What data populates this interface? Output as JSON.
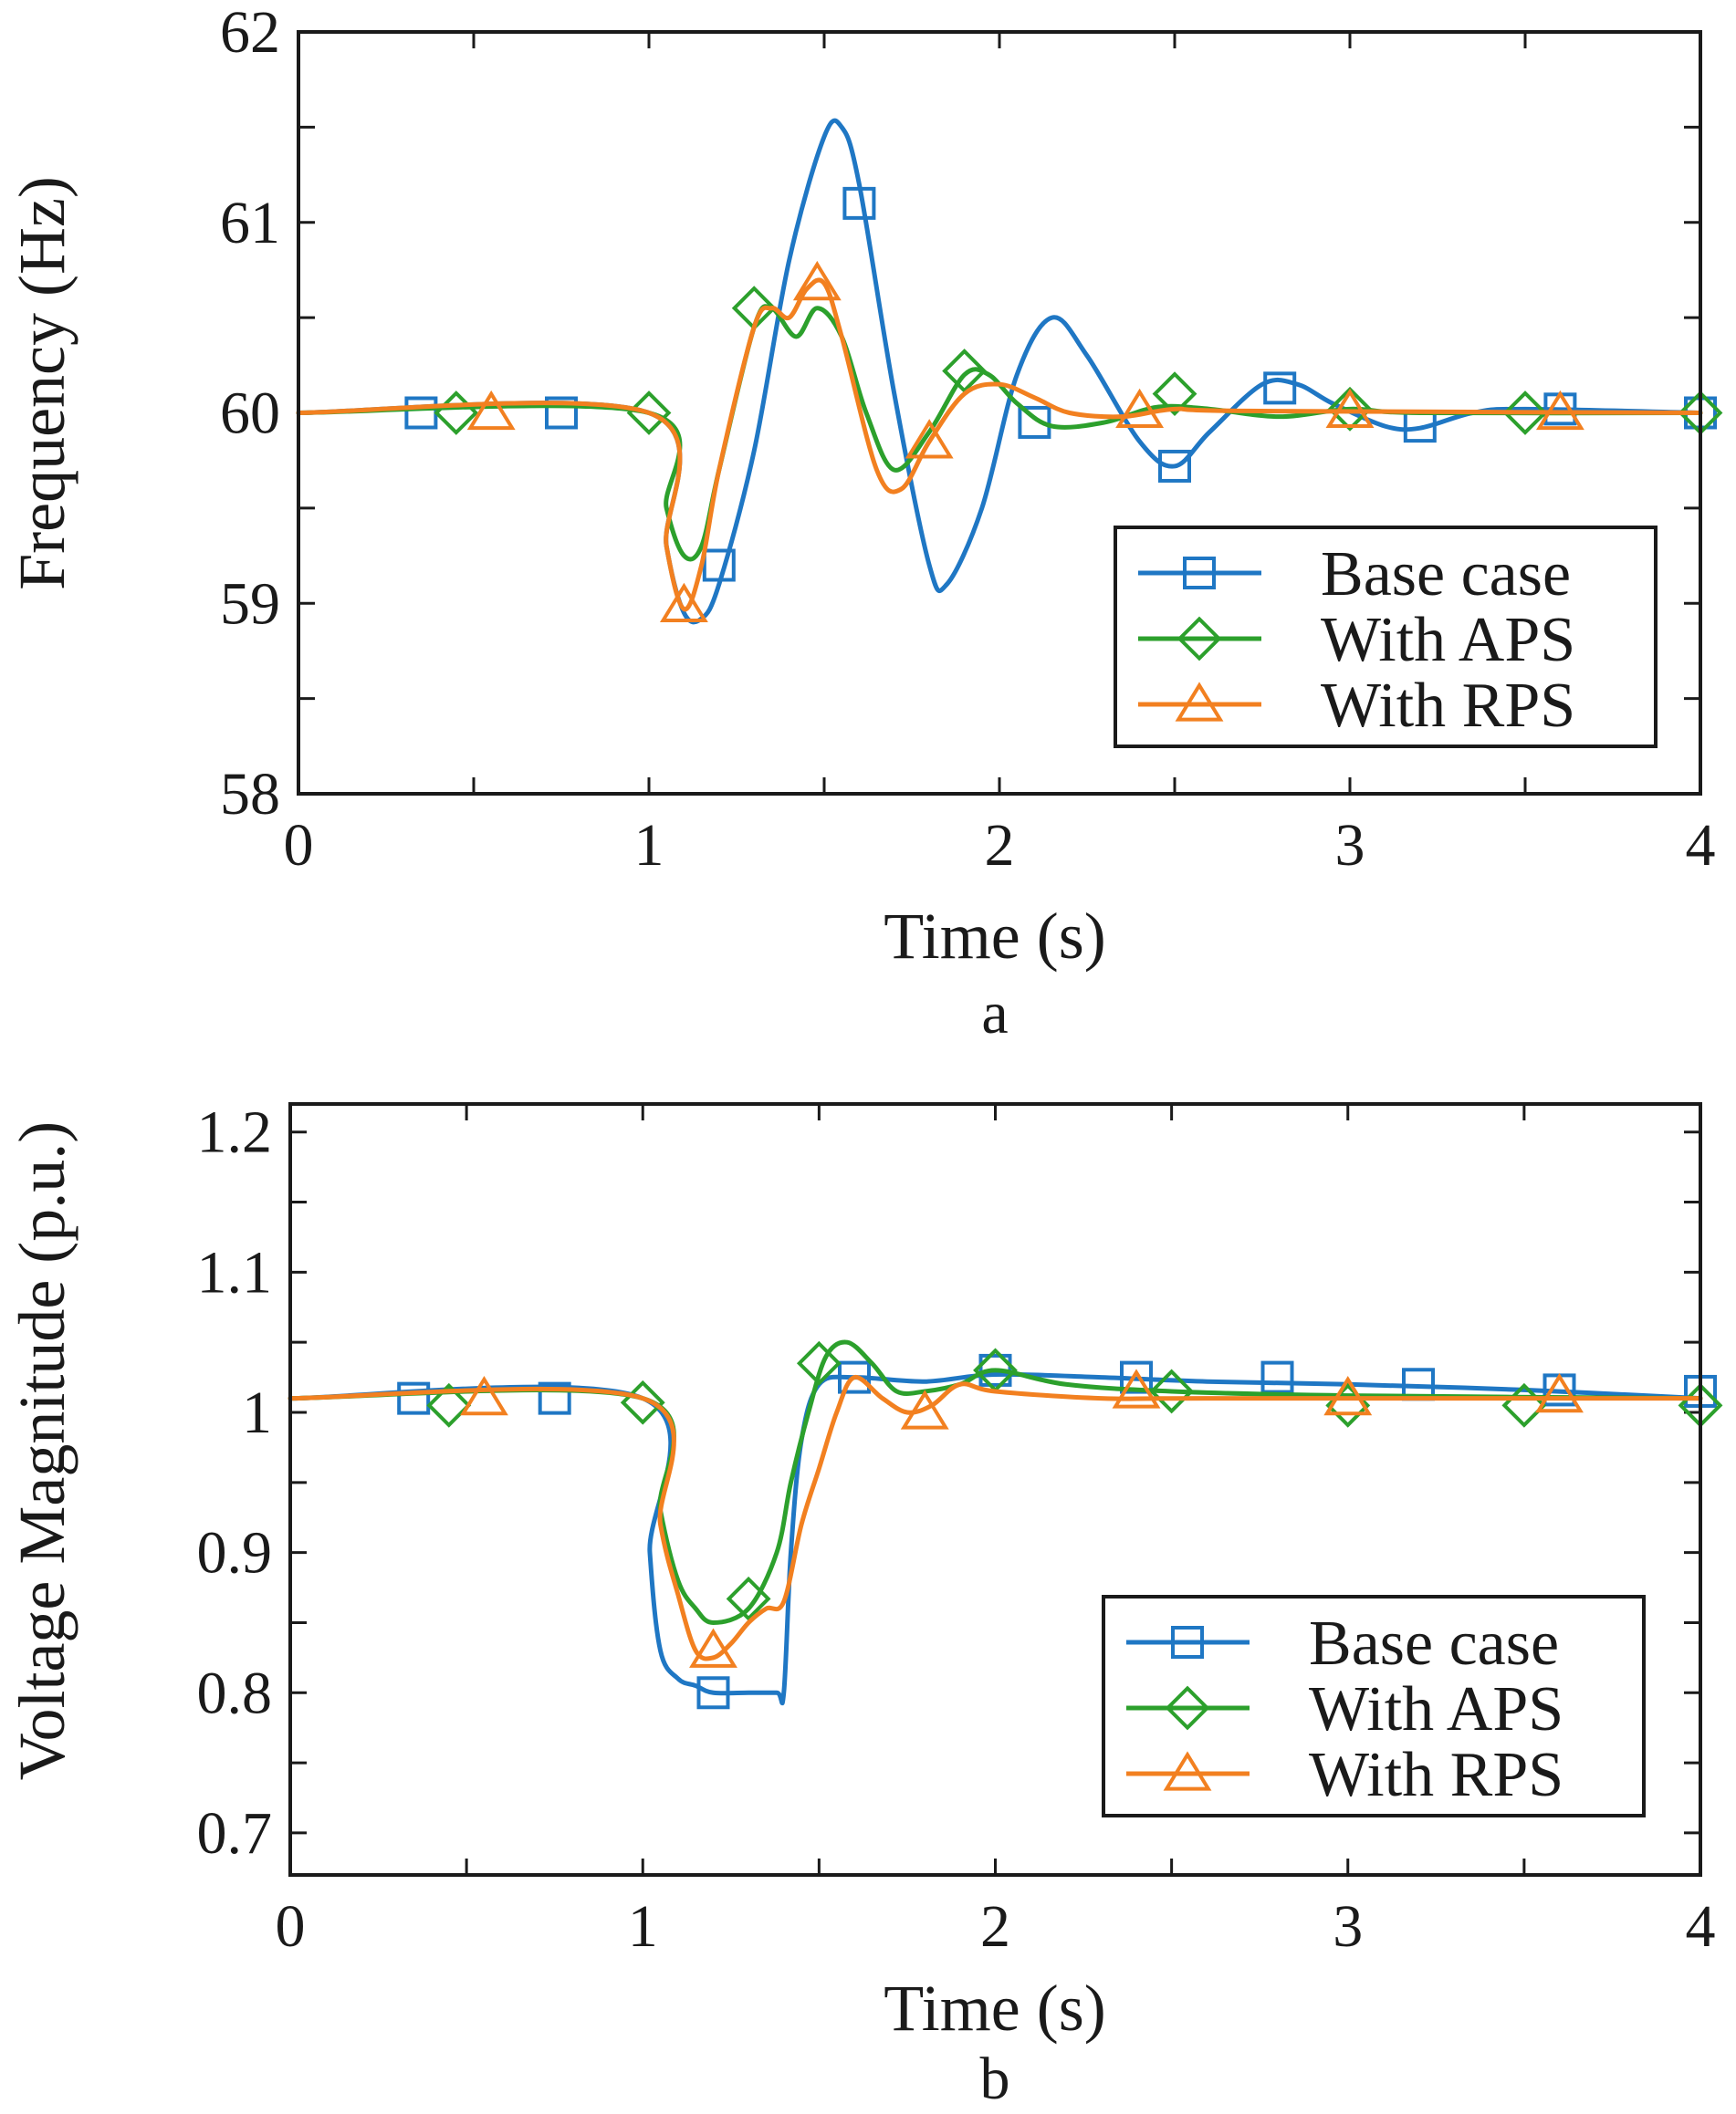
{
  "colors": {
    "base": "#1f77c4",
    "aps": "#2ca02c",
    "rps": "#f28020"
  },
  "chart_data": [
    {
      "type": "line",
      "panel_label": "a",
      "xlabel": "Time (s)",
      "ylabel": "Frequency (Hz)",
      "xlim": [
        0,
        4
      ],
      "ylim": [
        58,
        62
      ],
      "xticks": [
        0,
        1,
        2,
        3,
        4
      ],
      "xtick_labels": [
        "0",
        "1",
        "2",
        "3",
        "4"
      ],
      "yticks": [
        58,
        59,
        60,
        61,
        62
      ],
      "ytick_labels": [
        "58",
        "59",
        "60",
        "61",
        "62"
      ],
      "grid": false,
      "legend_position": "bottom-right",
      "series": [
        {
          "name": "Base case",
          "marker": "square",
          "color_key": "base",
          "x": [
            0,
            1.0,
            1.05,
            1.1,
            1.15,
            1.2,
            1.3,
            1.4,
            1.5,
            1.55,
            1.6,
            1.7,
            1.8,
            1.85,
            1.95,
            2.05,
            2.15,
            2.25,
            2.4,
            2.5,
            2.6,
            2.75,
            2.85,
            2.95,
            3.1,
            3.2,
            3.35,
            3.5,
            4.0
          ],
          "y": [
            60.0,
            60.0,
            59.3,
            58.95,
            58.92,
            59.1,
            59.8,
            60.8,
            61.45,
            61.5,
            61.2,
            60.1,
            59.2,
            59.1,
            59.5,
            60.2,
            60.5,
            60.3,
            59.85,
            59.72,
            59.9,
            60.15,
            60.15,
            60.05,
            59.93,
            59.92,
            60.0,
            60.02,
            60.0
          ],
          "marker_x": [
            0.35,
            0.75,
            1.2,
            1.6,
            2.1,
            2.5,
            2.8,
            3.2,
            3.6,
            4.0
          ],
          "marker_y": [
            60.0,
            60.0,
            59.2,
            61.1,
            59.95,
            59.72,
            60.13,
            59.93,
            60.02,
            60.0
          ]
        },
        {
          "name": "With APS",
          "marker": "diamond",
          "color_key": "aps",
          "x": [
            0,
            1.0,
            1.05,
            1.1,
            1.15,
            1.2,
            1.3,
            1.35,
            1.42,
            1.48,
            1.55,
            1.62,
            1.7,
            1.8,
            1.9,
            1.97,
            2.05,
            2.15,
            2.3,
            2.45,
            2.6,
            2.8,
            3.0,
            3.2,
            4.0
          ],
          "y": [
            60.0,
            60.0,
            59.5,
            59.25,
            59.3,
            59.7,
            60.45,
            60.55,
            60.4,
            60.55,
            60.4,
            60.0,
            59.7,
            59.9,
            60.2,
            60.2,
            60.05,
            59.93,
            59.95,
            60.03,
            60.02,
            59.98,
            60.02,
            60.0,
            60.0
          ],
          "marker_x": [
            0.45,
            1.0,
            1.3,
            1.9,
            2.5,
            3.0,
            3.5,
            4.0
          ],
          "marker_y": [
            60.0,
            60.0,
            60.55,
            60.22,
            60.1,
            60.02,
            60.0,
            60.0
          ]
        },
        {
          "name": "With RPS",
          "marker": "triangle",
          "color_key": "rps",
          "x": [
            0,
            1.0,
            1.05,
            1.1,
            1.15,
            1.2,
            1.3,
            1.35,
            1.4,
            1.45,
            1.5,
            1.55,
            1.65,
            1.72,
            1.8,
            1.9,
            2.0,
            2.1,
            2.2,
            2.35,
            2.5,
            2.7,
            4.0
          ],
          "y": [
            60.0,
            60.0,
            59.3,
            58.97,
            59.2,
            59.7,
            60.45,
            60.55,
            60.5,
            60.65,
            60.68,
            60.4,
            59.7,
            59.6,
            59.85,
            60.1,
            60.15,
            60.08,
            60.0,
            59.98,
            60.02,
            60.01,
            60.0
          ],
          "marker_x": [
            0.55,
            1.1,
            1.48,
            1.8,
            2.4,
            3.0,
            3.6
          ],
          "marker_y": [
            60.0,
            58.99,
            60.68,
            59.85,
            60.01,
            60.01,
            60.0
          ]
        }
      ]
    },
    {
      "type": "line",
      "panel_label": "b",
      "xlabel": "Time (s)",
      "ylabel": "Voltage Magnitude (p.u.)",
      "xlim": [
        0,
        4
      ],
      "ylim": [
        0.67,
        1.22
      ],
      "xticks": [
        0,
        1,
        2,
        3,
        4
      ],
      "xtick_labels": [
        "0",
        "1",
        "2",
        "3",
        "4"
      ],
      "yticks": [
        0.7,
        0.8,
        0.9,
        1.0,
        1.1,
        1.2
      ],
      "ytick_labels": [
        "0.7",
        "0.8",
        "0.9",
        "1",
        "1.1",
        "1.2"
      ],
      "grid": false,
      "legend_position": "bottom-right",
      "series": [
        {
          "name": "Base case",
          "marker": "square",
          "color_key": "base",
          "x": [
            0,
            1.0,
            1.02,
            1.05,
            1.1,
            1.15,
            1.2,
            1.3,
            1.38,
            1.4,
            1.42,
            1.45,
            1.5,
            1.6,
            1.8,
            2.0,
            2.3,
            2.6,
            3.0,
            3.5,
            4.0
          ],
          "y": [
            1.01,
            1.01,
            0.9,
            0.83,
            0.81,
            0.805,
            0.8,
            0.8,
            0.8,
            0.8,
            0.9,
            0.98,
            1.02,
            1.025,
            1.022,
            1.027,
            1.025,
            1.022,
            1.02,
            1.016,
            1.01
          ],
          "marker_x": [
            0.35,
            0.75,
            1.2,
            1.6,
            2.0,
            2.4,
            2.8,
            3.2,
            3.6,
            4.0
          ],
          "marker_y": [
            1.01,
            1.01,
            0.8,
            1.025,
            1.03,
            1.025,
            1.025,
            1.02,
            1.016,
            1.015
          ]
        },
        {
          "name": "With APS",
          "marker": "diamond",
          "color_key": "aps",
          "x": [
            0,
            1.0,
            1.05,
            1.1,
            1.15,
            1.2,
            1.3,
            1.38,
            1.42,
            1.47,
            1.52,
            1.58,
            1.65,
            1.72,
            1.8,
            1.9,
            2.0,
            2.2,
            2.5,
            3.0,
            4.0
          ],
          "y": [
            1.01,
            1.01,
            0.93,
            0.88,
            0.86,
            0.85,
            0.86,
            0.9,
            0.95,
            1.0,
            1.04,
            1.05,
            1.035,
            1.015,
            1.015,
            1.02,
            1.03,
            1.02,
            1.015,
            1.012,
            1.01
          ],
          "marker_x": [
            0.45,
            1.0,
            1.3,
            1.5,
            2.0,
            2.5,
            3.0,
            3.5,
            4.0
          ],
          "marker_y": [
            1.005,
            1.007,
            0.867,
            1.035,
            1.03,
            1.015,
            1.005,
            1.005,
            1.005
          ]
        },
        {
          "name": "With RPS",
          "marker": "triangle",
          "color_key": "rps",
          "x": [
            0,
            1.0,
            1.05,
            1.1,
            1.15,
            1.2,
            1.25,
            1.3,
            1.35,
            1.4,
            1.45,
            1.5,
            1.55,
            1.6,
            1.68,
            1.75,
            1.82,
            1.9,
            2.0,
            2.3,
            2.6,
            4.0
          ],
          "y": [
            1.01,
            1.01,
            0.92,
            0.87,
            0.83,
            0.825,
            0.835,
            0.85,
            0.86,
            0.865,
            0.92,
            0.96,
            1.0,
            1.025,
            1.01,
            1.0,
            1.005,
            1.02,
            1.015,
            1.01,
            1.01,
            1.01
          ],
          "marker_x": [
            0.55,
            1.2,
            1.8,
            2.4,
            3.0,
            3.6
          ],
          "marker_y": [
            1.01,
            0.83,
            1.0,
            1.015,
            1.01,
            1.012
          ]
        }
      ]
    }
  ]
}
